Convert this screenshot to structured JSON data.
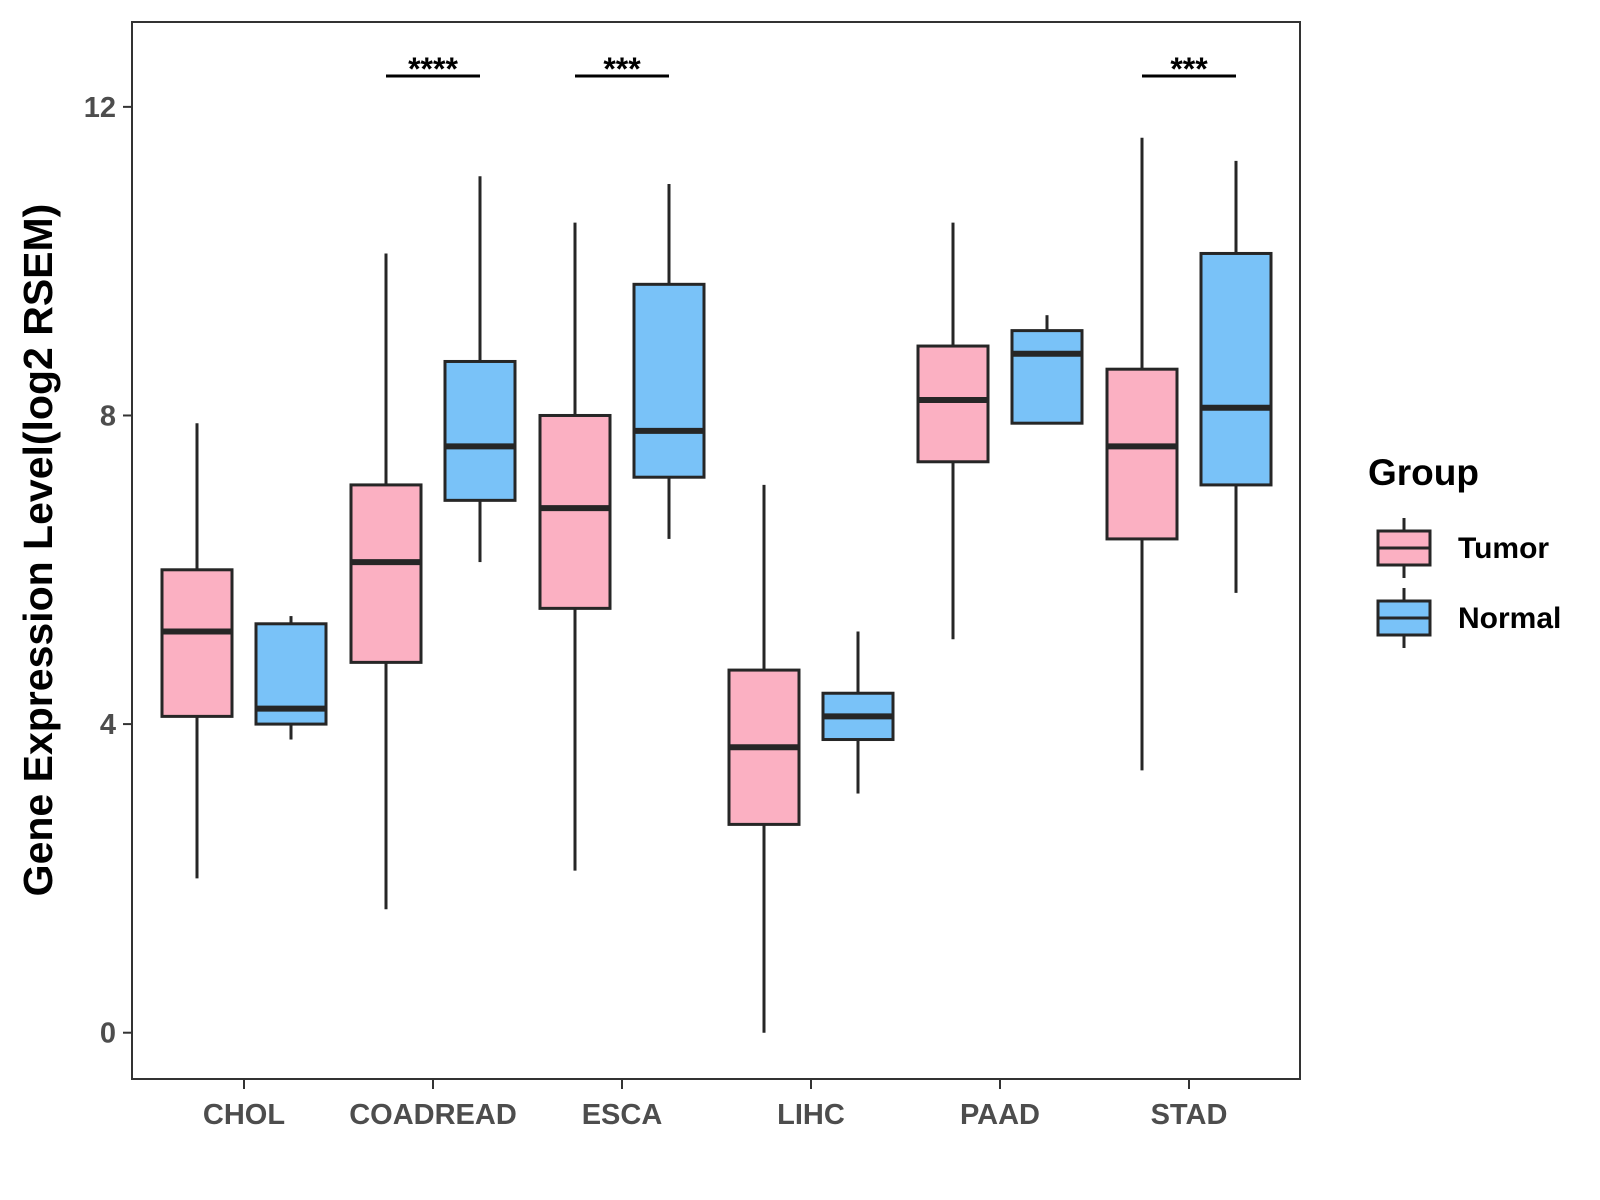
{
  "chart_data": {
    "type": "box",
    "ylabel": "Gene Expression Level(log2 RSEM)",
    "xlabel": "",
    "ylim": [
      -0.6,
      13.1
    ],
    "yticks": [
      0,
      4,
      8,
      12
    ],
    "ytick_labels": [
      "0",
      "4",
      "8",
      "12"
    ],
    "categories": [
      "CHOL",
      "COADREAD",
      "ESCA",
      "LIHC",
      "PAAD",
      "STAD"
    ],
    "legend": {
      "title": "Group",
      "position": "right",
      "entries": [
        "Tumor",
        "Normal"
      ]
    },
    "colors": {
      "Tumor": "#fbb0c2",
      "Normal": "#79c2f8",
      "line": "#262626"
    },
    "series": [
      {
        "name": "Tumor",
        "boxes": [
          {
            "whisker_low": 2.0,
            "q1": 4.1,
            "median": 5.2,
            "q3": 6.0,
            "whisker_high": 7.9
          },
          {
            "whisker_low": 1.6,
            "q1": 4.8,
            "median": 6.1,
            "q3": 7.1,
            "whisker_high": 10.1
          },
          {
            "whisker_low": 2.1,
            "q1": 5.5,
            "median": 6.8,
            "q3": 8.0,
            "whisker_high": 10.5
          },
          {
            "whisker_low": 0.0,
            "q1": 2.7,
            "median": 3.7,
            "q3": 4.7,
            "whisker_high": 7.1
          },
          {
            "whisker_low": 5.1,
            "q1": 7.4,
            "median": 8.2,
            "q3": 8.9,
            "whisker_high": 10.5
          },
          {
            "whisker_low": 3.4,
            "q1": 6.4,
            "median": 7.6,
            "q3": 8.6,
            "whisker_high": 11.6
          }
        ]
      },
      {
        "name": "Normal",
        "boxes": [
          {
            "whisker_low": 3.8,
            "q1": 4.0,
            "median": 4.2,
            "q3": 5.3,
            "whisker_high": 5.4
          },
          {
            "whisker_low": 6.1,
            "q1": 6.9,
            "median": 7.6,
            "q3": 8.7,
            "whisker_high": 11.1
          },
          {
            "whisker_low": 6.4,
            "q1": 7.2,
            "median": 7.8,
            "q3": 9.7,
            "whisker_high": 11.0
          },
          {
            "whisker_low": 3.1,
            "q1": 3.8,
            "median": 4.1,
            "q3": 4.4,
            "whisker_high": 5.2
          },
          {
            "whisker_low": 7.9,
            "q1": 7.9,
            "median": 8.8,
            "q3": 9.1,
            "whisker_high": 9.3
          },
          {
            "whisker_low": 5.7,
            "q1": 7.1,
            "median": 8.1,
            "q3": 10.1,
            "whisker_high": 11.3
          }
        ]
      }
    ],
    "significance": [
      {
        "category": "COADREAD",
        "label": "****",
        "y": 12.4
      },
      {
        "category": "ESCA",
        "label": "***",
        "y": 12.4
      },
      {
        "category": "STAD",
        "label": "***",
        "y": 12.4
      }
    ]
  }
}
